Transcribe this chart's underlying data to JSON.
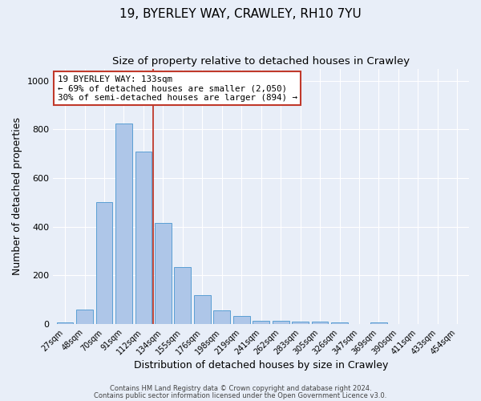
{
  "title1": "19, BYERLEY WAY, CRAWLEY, RH10 7YU",
  "title2": "Size of property relative to detached houses in Crawley",
  "xlabel": "Distribution of detached houses by size in Crawley",
  "ylabel": "Number of detached properties",
  "categories": [
    "27sqm",
    "48sqm",
    "70sqm",
    "91sqm",
    "112sqm",
    "134sqm",
    "155sqm",
    "176sqm",
    "198sqm",
    "219sqm",
    "241sqm",
    "262sqm",
    "283sqm",
    "305sqm",
    "326sqm",
    "347sqm",
    "369sqm",
    "390sqm",
    "411sqm",
    "433sqm",
    "454sqm"
  ],
  "values": [
    8,
    60,
    500,
    825,
    710,
    415,
    235,
    120,
    55,
    35,
    14,
    14,
    12,
    10,
    8,
    0,
    8,
    0,
    0,
    0,
    0
  ],
  "bar_color": "#aec6e8",
  "bar_edge_color": "#5a9fd4",
  "vline_color": "#c0392b",
  "annotation_text": "19 BYERLEY WAY: 133sqm\n← 69% of detached houses are smaller (2,050)\n30% of semi-detached houses are larger (894) →",
  "annotation_box_color": "#ffffff",
  "annotation_box_edge_color": "#c0392b",
  "ylim": [
    0,
    1050
  ],
  "background_color": "#e8eef8",
  "grid_color": "#ffffff",
  "footer1": "Contains HM Land Registry data © Crown copyright and database right 2024.",
  "footer2": "Contains public sector information licensed under the Open Government Licence v3.0.",
  "title1_fontsize": 11,
  "title2_fontsize": 9.5,
  "tick_fontsize": 7,
  "ylabel_fontsize": 9,
  "xlabel_fontsize": 9,
  "footer_fontsize": 6
}
